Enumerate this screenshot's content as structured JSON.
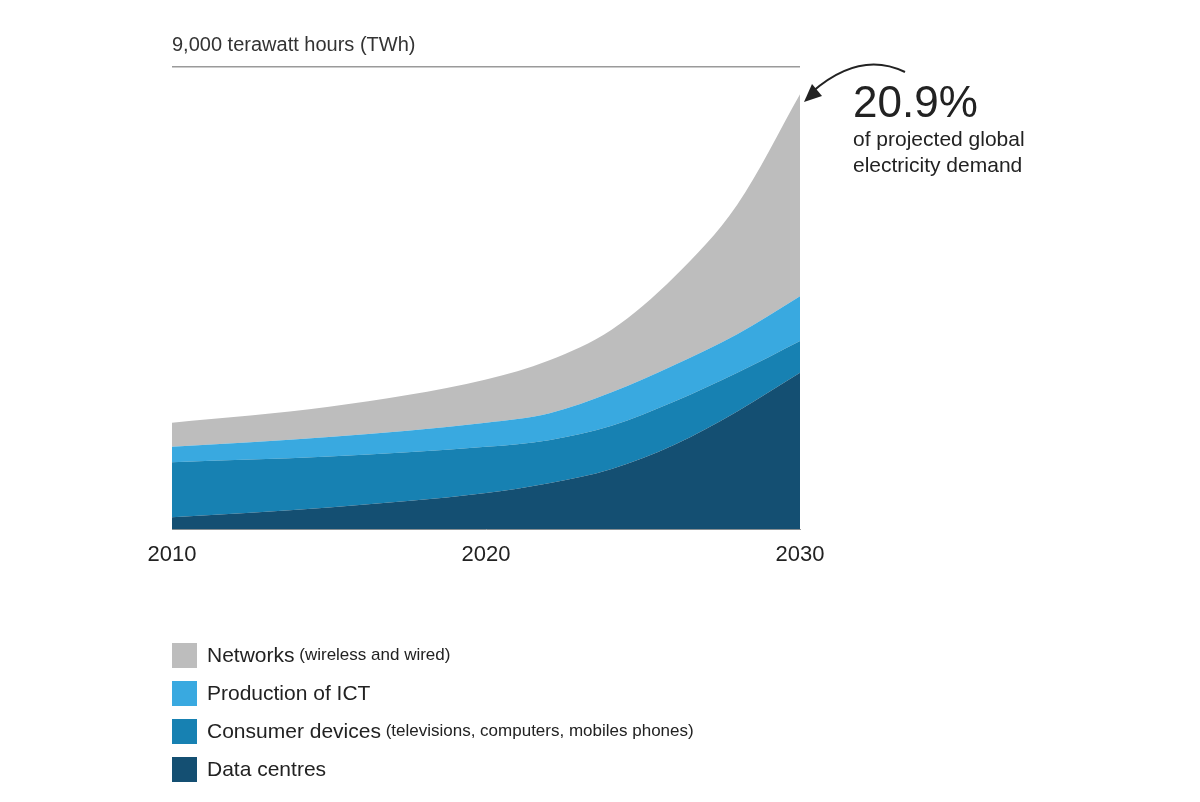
{
  "chart_data": {
    "type": "area",
    "stacked": true,
    "grid": "y",
    "legend": "bottom",
    "x": [
      2010,
      2015,
      2020,
      2022,
      2024,
      2026,
      2028,
      2030
    ],
    "xlim": [
      2010,
      2030
    ],
    "xticks": [
      2010,
      2020,
      2030
    ],
    "ylim": [
      0,
      9000
    ],
    "yticks": [
      {
        "value": 9000,
        "label": "9,000 terawatt hours (TWh)"
      }
    ],
    "series": [
      {
        "name": "Data centres",
        "color": "#144f72",
        "values": [
          240,
          430,
          710,
          900,
          1180,
          1650,
          2300,
          3050
        ]
      },
      {
        "name": "Consumer devices (televisions, computers, mobiles phones)",
        "color": "#1781b2",
        "values": [
          1070,
          990,
          900,
          840,
          840,
          840,
          750,
          620
        ]
      },
      {
        "name": "Production of ICT",
        "color": "#39a9e0",
        "values": [
          300,
          380,
          470,
          520,
          650,
          710,
          750,
          870
        ]
      },
      {
        "name": "Networks (wireless and wired)",
        "color": "#bdbdbd",
        "values": [
          470,
          590,
          840,
          1030,
          1220,
          1720,
          2520,
          3930
        ]
      }
    ],
    "annotations": [
      {
        "label": "20.9%",
        "text": "of projected global electricity demand"
      }
    ]
  }
}
